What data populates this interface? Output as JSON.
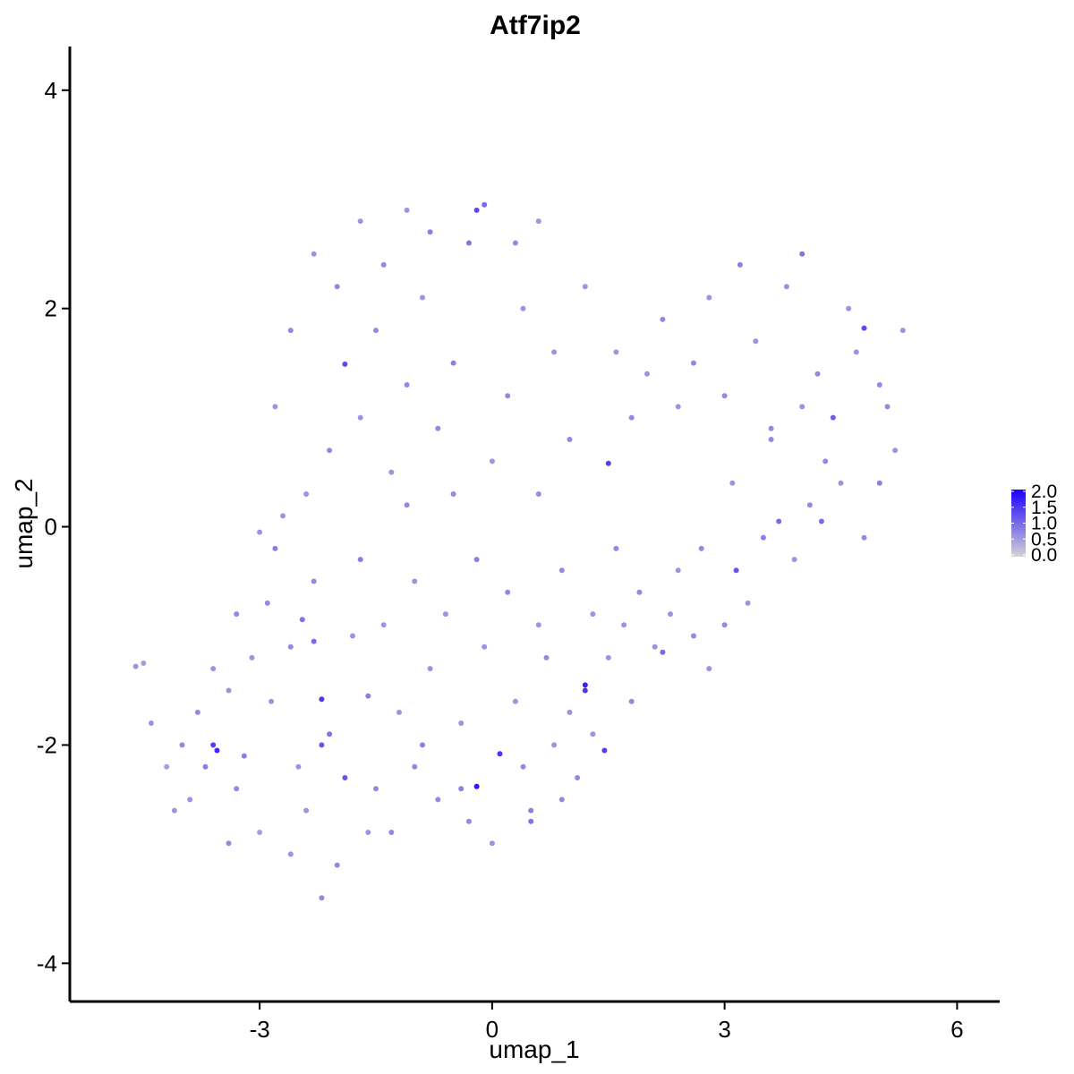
{
  "chart_data": {
    "type": "scatter",
    "title": "Atf7ip2",
    "xlabel": "umap_1",
    "ylabel": "umap_2",
    "xlim": [
      -5.45,
      6.55
    ],
    "ylim": [
      -4.35,
      4.4
    ],
    "x_ticks": [
      -3,
      0,
      3,
      6
    ],
    "y_ticks": [
      -4,
      -2,
      0,
      2,
      4
    ],
    "x_tick_labels": [
      "-3",
      "0",
      "3",
      "6"
    ],
    "y_tick_labels": [
      "-4",
      "-2",
      "0",
      "2",
      "4"
    ],
    "grid": false,
    "legend": {
      "placement": "right",
      "type": "colorbar",
      "range": [
        0.0,
        2.0
      ],
      "tick_values": [
        2.0,
        1.5,
        1.0,
        0.5,
        0.0
      ],
      "tick_labels": [
        "2.0",
        "1.5",
        "1.0",
        "0.5",
        "0.0"
      ]
    },
    "color_low": "#d3d3d3",
    "color_high": "#1c00ff",
    "points": [
      [
        -4.6,
        -1.28,
        0.6
      ],
      [
        -4.5,
        -1.25,
        0.5
      ],
      [
        -4.4,
        -1.8,
        0.6
      ],
      [
        -4.2,
        -2.2,
        0.5
      ],
      [
        -4.0,
        -2.0,
        0.7
      ],
      [
        -3.9,
        -2.5,
        0.6
      ],
      [
        -3.7,
        -2.2,
        0.8
      ],
      [
        -3.6,
        -2.0,
        1.4
      ],
      [
        -3.55,
        -2.05,
        1.6
      ],
      [
        -3.4,
        -1.5,
        0.6
      ],
      [
        -3.3,
        -2.4,
        0.7
      ],
      [
        -3.2,
        -2.1,
        0.8
      ],
      [
        -3.1,
        -1.2,
        0.6
      ],
      [
        -3.0,
        -2.8,
        0.5
      ],
      [
        -2.9,
        -0.7,
        0.7
      ],
      [
        -2.85,
        -1.6,
        0.6
      ],
      [
        -2.8,
        -0.2,
        0.8
      ],
      [
        -2.7,
        0.1,
        0.6
      ],
      [
        -2.6,
        -1.1,
        0.7
      ],
      [
        -2.5,
        -2.2,
        0.6
      ],
      [
        -2.45,
        -0.85,
        0.9
      ],
      [
        -2.4,
        -2.6,
        0.6
      ],
      [
        -2.3,
        -0.5,
        0.7
      ],
      [
        -2.3,
        -1.05,
        1.0
      ],
      [
        -2.2,
        -1.58,
        1.5
      ],
      [
        -2.2,
        -2.0,
        1.2
      ],
      [
        -2.1,
        -1.9,
        0.9
      ],
      [
        -2.0,
        -3.1,
        0.7
      ],
      [
        -1.9,
        -2.3,
        1.2
      ],
      [
        -1.8,
        -1.0,
        0.6
      ],
      [
        -1.7,
        -0.3,
        0.8
      ],
      [
        -1.6,
        -1.55,
        0.8
      ],
      [
        -1.5,
        -2.4,
        0.7
      ],
      [
        -1.4,
        -0.9,
        0.6
      ],
      [
        -1.3,
        -2.8,
        0.7
      ],
      [
        -1.2,
        -1.7,
        0.6
      ],
      [
        -1.1,
        0.2,
        0.7
      ],
      [
        -1.0,
        -0.5,
        0.6
      ],
      [
        -0.9,
        -2.0,
        0.8
      ],
      [
        -0.8,
        -1.3,
        0.6
      ],
      [
        -0.7,
        -2.5,
        0.7
      ],
      [
        -0.6,
        -0.8,
        0.6
      ],
      [
        -0.5,
        0.3,
        0.7
      ],
      [
        -0.4,
        -1.8,
        0.6
      ],
      [
        -0.3,
        -2.7,
        0.7
      ],
      [
        -0.2,
        -0.3,
        0.8
      ],
      [
        -0.2,
        -2.38,
        1.8
      ],
      [
        -0.1,
        -1.1,
        0.6
      ],
      [
        0.0,
        -2.9,
        0.6
      ],
      [
        0.1,
        -2.08,
        1.5
      ],
      [
        0.2,
        -0.6,
        0.7
      ],
      [
        0.3,
        -1.6,
        0.6
      ],
      [
        0.4,
        -2.2,
        0.7
      ],
      [
        0.5,
        -2.6,
        0.8
      ],
      [
        0.6,
        -0.9,
        0.6
      ],
      [
        0.7,
        -1.2,
        0.7
      ],
      [
        0.8,
        -2.0,
        0.6
      ],
      [
        0.9,
        -0.4,
        0.7
      ],
      [
        1.0,
        -1.7,
        0.6
      ],
      [
        1.1,
        -2.3,
        0.7
      ],
      [
        1.2,
        -1.45,
        1.7
      ],
      [
        1.2,
        -1.5,
        1.5
      ],
      [
        1.3,
        -0.8,
        0.6
      ],
      [
        1.45,
        -2.05,
        1.4
      ],
      [
        1.5,
        -1.2,
        0.6
      ],
      [
        1.6,
        -0.2,
        0.7
      ],
      [
        1.7,
        -0.9,
        0.6
      ],
      [
        1.9,
        -0.6,
        0.7
      ],
      [
        2.1,
        -1.1,
        0.6
      ],
      [
        2.2,
        -1.15,
        1.0
      ],
      [
        2.4,
        -0.4,
        0.6
      ],
      [
        2.6,
        -1.0,
        0.7
      ],
      [
        2.8,
        -1.3,
        0.6
      ],
      [
        3.0,
        -0.9,
        0.7
      ],
      [
        3.15,
        -0.4,
        1.2
      ],
      [
        3.3,
        -0.7,
        0.6
      ],
      [
        3.5,
        -0.1,
        0.8
      ],
      [
        3.7,
        0.05,
        1.0
      ],
      [
        3.9,
        -0.3,
        0.6
      ],
      [
        4.1,
        0.2,
        0.7
      ],
      [
        4.25,
        0.05,
        1.0
      ],
      [
        4.5,
        0.4,
        0.6
      ],
      [
        4.8,
        -0.1,
        0.7
      ],
      [
        5.0,
        0.4,
        0.8
      ],
      [
        -2.4,
        0.3,
        0.6
      ],
      [
        -2.1,
        0.7,
        0.7
      ],
      [
        -1.9,
        1.49,
        1.3
      ],
      [
        -1.7,
        1.0,
        0.6
      ],
      [
        -1.5,
        1.8,
        0.7
      ],
      [
        -1.3,
        0.5,
        0.6
      ],
      [
        -1.1,
        1.3,
        0.7
      ],
      [
        -0.9,
        2.1,
        0.6
      ],
      [
        -0.7,
        0.9,
        0.7
      ],
      [
        -0.5,
        1.5,
        0.8
      ],
      [
        -0.3,
        2.6,
        0.9
      ],
      [
        -0.2,
        2.9,
        1.3
      ],
      [
        -0.1,
        2.95,
        1.0
      ],
      [
        0.0,
        0.6,
        0.6
      ],
      [
        0.2,
        1.2,
        0.7
      ],
      [
        0.4,
        2.0,
        0.6
      ],
      [
        0.6,
        0.3,
        0.7
      ],
      [
        0.8,
        1.6,
        0.6
      ],
      [
        1.0,
        0.8,
        0.7
      ],
      [
        1.2,
        2.2,
        0.6
      ],
      [
        1.5,
        0.58,
        1.4
      ],
      [
        1.6,
        1.6,
        0.6
      ],
      [
        1.8,
        1.0,
        0.7
      ],
      [
        2.0,
        1.4,
        0.6
      ],
      [
        2.2,
        1.9,
        0.7
      ],
      [
        2.4,
        1.1,
        0.6
      ],
      [
        2.6,
        1.5,
        0.7
      ],
      [
        2.8,
        2.1,
        0.6
      ],
      [
        3.0,
        1.2,
        0.7
      ],
      [
        3.2,
        2.4,
        0.8
      ],
      [
        3.4,
        1.7,
        0.6
      ],
      [
        3.6,
        0.8,
        0.7
      ],
      [
        3.8,
        2.2,
        0.6
      ],
      [
        4.0,
        2.5,
        0.9
      ],
      [
        4.2,
        1.4,
        0.7
      ],
      [
        4.4,
        1.0,
        1.1
      ],
      [
        4.6,
        2.0,
        0.6
      ],
      [
        4.8,
        1.82,
        1.3
      ],
      [
        5.0,
        1.3,
        0.7
      ],
      [
        5.2,
        0.7,
        0.6
      ],
      [
        -2.8,
        1.1,
        0.6
      ],
      [
        -2.6,
        1.8,
        0.7
      ],
      [
        -2.3,
        2.5,
        0.6
      ],
      [
        -2.0,
        2.2,
        0.7
      ],
      [
        -1.7,
        2.8,
        0.6
      ],
      [
        -1.4,
        2.4,
        0.7
      ],
      [
        -1.1,
        2.9,
        0.6
      ],
      [
        -0.8,
        2.7,
        0.8
      ],
      [
        0.3,
        2.6,
        0.7
      ],
      [
        0.6,
        2.8,
        0.6
      ],
      [
        -3.0,
        -0.05,
        0.6
      ],
      [
        -3.3,
        -0.8,
        0.7
      ],
      [
        -3.6,
        -1.3,
        0.6
      ],
      [
        -3.8,
        -1.7,
        0.7
      ],
      [
        -4.1,
        -2.6,
        0.6
      ],
      [
        -3.4,
        -2.9,
        0.7
      ],
      [
        -2.6,
        -3.0,
        0.6
      ],
      [
        -2.2,
        -3.4,
        0.7
      ],
      [
        -1.6,
        -2.8,
        0.6
      ],
      [
        -1.0,
        -2.2,
        0.7
      ],
      [
        -0.4,
        -2.4,
        0.8
      ],
      [
        0.5,
        -2.7,
        0.9
      ],
      [
        0.9,
        -2.5,
        0.7
      ],
      [
        1.3,
        -1.9,
        0.6
      ],
      [
        1.8,
        -1.6,
        0.7
      ],
      [
        2.3,
        -0.8,
        0.6
      ],
      [
        2.7,
        -0.2,
        0.7
      ],
      [
        3.1,
        0.4,
        0.6
      ],
      [
        3.6,
        0.9,
        0.7
      ],
      [
        4.0,
        1.1,
        0.6
      ],
      [
        4.3,
        0.6,
        0.7
      ],
      [
        4.7,
        1.6,
        0.6
      ],
      [
        5.1,
        1.1,
        0.7
      ],
      [
        5.3,
        1.8,
        0.6
      ]
    ]
  }
}
